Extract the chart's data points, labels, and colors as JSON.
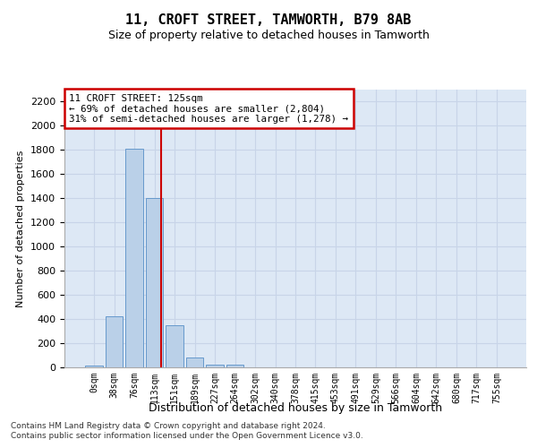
{
  "title": "11, CROFT STREET, TAMWORTH, B79 8AB",
  "subtitle": "Size of property relative to detached houses in Tamworth",
  "xlabel": "Distribution of detached houses by size in Tamworth",
  "ylabel": "Number of detached properties",
  "bar_labels": [
    "0sqm",
    "38sqm",
    "76sqm",
    "113sqm",
    "151sqm",
    "189sqm",
    "227sqm",
    "264sqm",
    "302sqm",
    "340sqm",
    "378sqm",
    "415sqm",
    "453sqm",
    "491sqm",
    "529sqm",
    "566sqm",
    "604sqm",
    "642sqm",
    "680sqm",
    "717sqm",
    "755sqm"
  ],
  "bar_values": [
    15,
    420,
    1810,
    1400,
    350,
    80,
    25,
    20,
    0,
    0,
    0,
    0,
    0,
    0,
    0,
    0,
    0,
    0,
    0,
    0,
    0
  ],
  "bar_color": "#bad0e8",
  "bar_edgecolor": "#6699cc",
  "vline_color": "#cc0000",
  "vline_x": 3.32,
  "annotation_text": "11 CROFT STREET: 125sqm\n← 69% of detached houses are smaller (2,804)\n31% of semi-detached houses are larger (1,278) →",
  "annotation_box_facecolor": "#ffffff",
  "annotation_box_edgecolor": "#cc0000",
  "ylim": [
    0,
    2300
  ],
  "yticks": [
    0,
    200,
    400,
    600,
    800,
    1000,
    1200,
    1400,
    1600,
    1800,
    2000,
    2200
  ],
  "grid_color": "#c8d4e8",
  "bg_color": "#dde8f5",
  "fig_facecolor": "#ffffff",
  "footer_line1": "Contains HM Land Registry data © Crown copyright and database right 2024.",
  "footer_line2": "Contains public sector information licensed under the Open Government Licence v3.0."
}
